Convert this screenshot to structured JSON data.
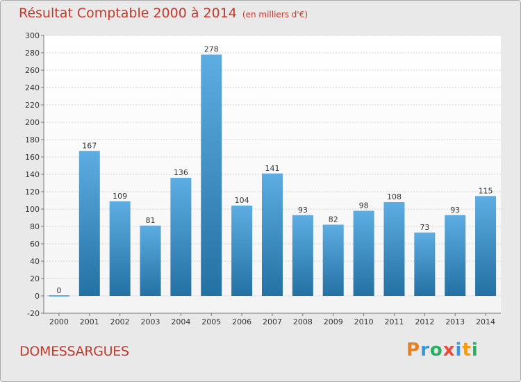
{
  "header": {
    "title": "Résultat Comptable 2000 à 2014",
    "subtitle": "(en milliers d'€)"
  },
  "footer": {
    "commune": "DOMESSARGUES",
    "logo_letters": [
      "P",
      "r",
      "o",
      "x",
      "i",
      "t",
      "i"
    ]
  },
  "colors": {
    "title": "#c0392b",
    "bar_top": "#5dade2",
    "bar_bottom": "#2471a3",
    "logo": [
      "#e67e22",
      "#3498db",
      "#27ae60",
      "#e74c3c",
      "#3498db",
      "#f39c12",
      "#27ae60"
    ]
  },
  "chart_data": {
    "type": "bar",
    "title": "Résultat Comptable 2000 à 2014",
    "subtitle": "(en milliers d'€)",
    "categories": [
      "2000",
      "2001",
      "2002",
      "2003",
      "2004",
      "2005",
      "2006",
      "2007",
      "2008",
      "2009",
      "2010",
      "2011",
      "2012",
      "2013",
      "2014"
    ],
    "values": [
      0,
      167,
      109,
      81,
      136,
      278,
      104,
      141,
      93,
      82,
      98,
      108,
      73,
      93,
      115
    ],
    "ylim": [
      -20,
      300
    ],
    "yticks": [
      -20,
      0,
      20,
      40,
      60,
      80,
      100,
      120,
      140,
      160,
      180,
      200,
      220,
      240,
      260,
      280,
      300
    ],
    "grid": true,
    "data_labels": true
  }
}
